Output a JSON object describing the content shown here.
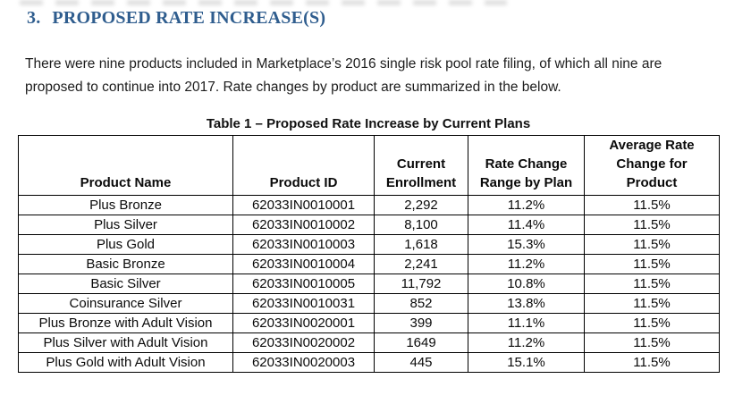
{
  "heading": {
    "number": "3.",
    "title": "PROPOSED RATE INCREASE(S)",
    "color": "#2f5d8e"
  },
  "paragraph": {
    "lines": [
      "There were nine products included in Marketplace’s 2016 single risk pool rate filing, of which all nine are",
      "proposed to continue into 2017. Rate changes by product are summarized in the below."
    ]
  },
  "table": {
    "caption": "Table 1 – Proposed Rate Increase by Current Plans",
    "columns": [
      "Product Name",
      "Product ID",
      "Current Enrollment",
      "Rate Change Range by Plan",
      "Average Rate Change for Product"
    ],
    "rows": [
      [
        "Plus Bronze",
        "62033IN0010001",
        "2,292",
        "11.2%",
        "11.5%"
      ],
      [
        "Plus Silver",
        "62033IN0010002",
        "8,100",
        "11.4%",
        "11.5%"
      ],
      [
        "Plus Gold",
        "62033IN0010003",
        "1,618",
        "15.3%",
        "11.5%"
      ],
      [
        "Basic Bronze",
        "62033IN0010004",
        "2,241",
        "11.2%",
        "11.5%"
      ],
      [
        "Basic Silver",
        "62033IN0010005",
        "11,792",
        "10.8%",
        "11.5%"
      ],
      [
        "Coinsurance Silver",
        "62033IN0010031",
        "852",
        "13.8%",
        "11.5%"
      ],
      [
        "Plus Bronze with Adult Vision",
        "62033IN0020001",
        "399",
        "11.1%",
        "11.5%"
      ],
      [
        "Plus Silver with Adult Vision",
        "62033IN0020002",
        "1649",
        "11.2%",
        "11.5%"
      ],
      [
        "Plus Gold with Adult Vision",
        "62033IN0020003",
        "445",
        "15.1%",
        "11.5%"
      ]
    ]
  }
}
